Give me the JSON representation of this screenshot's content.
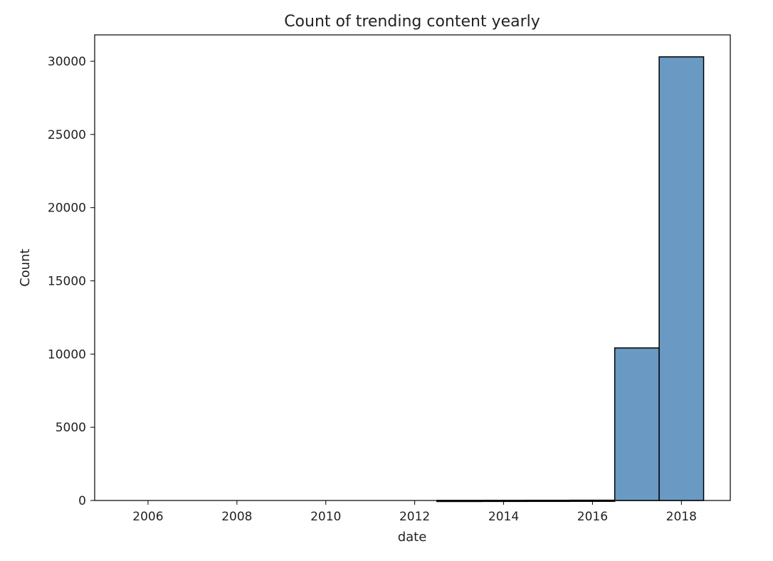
{
  "chart_data": {
    "type": "histogram",
    "title": "Count of trending content yearly",
    "xlabel": "date",
    "ylabel": "Count",
    "x_ticks": [
      2006,
      2008,
      2010,
      2012,
      2014,
      2016,
      2018
    ],
    "y_ticks": [
      0,
      5000,
      10000,
      15000,
      20000,
      25000,
      30000
    ],
    "xlim": [
      2004.8,
      2019.1
    ],
    "ylim": [
      0,
      31800
    ],
    "grid": false,
    "bar_color": "#6a9ac4",
    "edge_color": "#000000",
    "bins": [
      {
        "x_start": 2012.5,
        "x_end": 2013.5,
        "count": 8
      },
      {
        "x_start": 2013.5,
        "x_end": 2014.5,
        "count": 12
      },
      {
        "x_start": 2014.5,
        "x_end": 2015.5,
        "count": 15
      },
      {
        "x_start": 2015.5,
        "x_end": 2016.5,
        "count": 20
      },
      {
        "x_start": 2016.5,
        "x_end": 2017.5,
        "count": 10420
      },
      {
        "x_start": 2017.5,
        "x_end": 2018.5,
        "count": 30300
      }
    ]
  }
}
